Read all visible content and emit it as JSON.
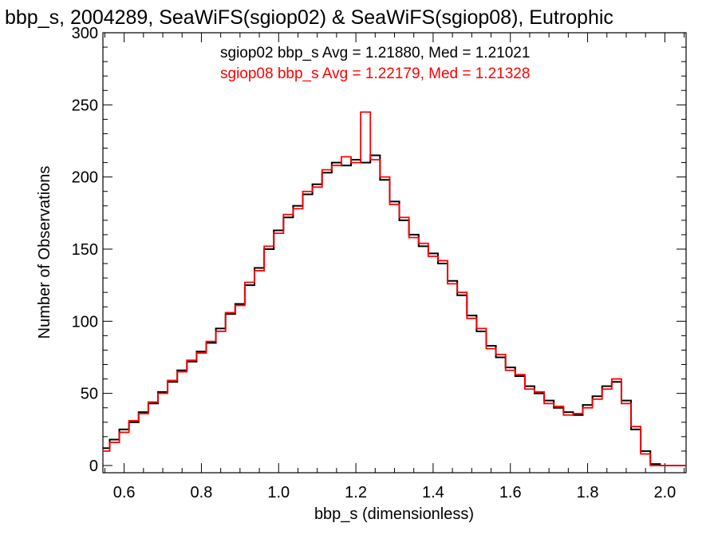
{
  "chart_data": {
    "type": "line",
    "title": "bbp_s, 2004289, SeaWiFS(sgiop02) & SeaWiFS(sgiop08), Eutrophic",
    "xlabel": "bbp_s (dimensionless)",
    "ylabel": "Number of Observations",
    "xlim": [
      0.545,
      2.055
    ],
    "ylim": [
      -5,
      300
    ],
    "xticks": [
      "0.6",
      "0.8",
      "1.0",
      "1.2",
      "1.4",
      "1.6",
      "1.8",
      "2.0"
    ],
    "yticks": [
      "0",
      "50",
      "100",
      "150",
      "200",
      "250",
      "300"
    ],
    "style": "step",
    "grid": false,
    "annotations": [
      {
        "text": "sgiop02 bbp_s Avg = 1.21880, Med = 1.21021",
        "color": "#000000"
      },
      {
        "text": "sgiop08 bbp_s Avg = 1.22179, Med = 1.21328",
        "color": "#ff0000"
      }
    ],
    "series": [
      {
        "name": "sgiop02",
        "color": "#000000",
        "x": [
          0.55,
          0.575,
          0.6,
          0.625,
          0.65,
          0.675,
          0.7,
          0.725,
          0.75,
          0.775,
          0.8,
          0.825,
          0.85,
          0.875,
          0.9,
          0.925,
          0.95,
          0.975,
          1.0,
          1.025,
          1.05,
          1.075,
          1.1,
          1.125,
          1.15,
          1.175,
          1.2,
          1.225,
          1.25,
          1.275,
          1.3,
          1.325,
          1.35,
          1.375,
          1.4,
          1.425,
          1.45,
          1.475,
          1.5,
          1.525,
          1.55,
          1.575,
          1.6,
          1.625,
          1.65,
          1.675,
          1.7,
          1.725,
          1.75,
          1.775,
          1.8,
          1.825,
          1.85,
          1.875,
          1.9,
          1.925,
          1.95,
          1.975,
          2.0
        ],
        "values": [
          12,
          18,
          25,
          30,
          37,
          43,
          51,
          58,
          66,
          72,
          79,
          85,
          95,
          105,
          112,
          125,
          137,
          150,
          163,
          172,
          180,
          188,
          195,
          203,
          210,
          208,
          212,
          210,
          215,
          198,
          183,
          170,
          160,
          152,
          147,
          140,
          128,
          118,
          104,
          93,
          83,
          75,
          68,
          62,
          55,
          50,
          45,
          40,
          37,
          35,
          42,
          48,
          55,
          58,
          45,
          25,
          10,
          1,
          0
        ]
      },
      {
        "name": "sgiop08",
        "color": "#ff0000",
        "x": [
          0.55,
          0.575,
          0.6,
          0.625,
          0.65,
          0.675,
          0.7,
          0.725,
          0.75,
          0.775,
          0.8,
          0.825,
          0.85,
          0.875,
          0.9,
          0.925,
          0.95,
          0.975,
          1.0,
          1.025,
          1.05,
          1.075,
          1.1,
          1.125,
          1.15,
          1.175,
          1.2,
          1.225,
          1.25,
          1.275,
          1.3,
          1.325,
          1.35,
          1.375,
          1.4,
          1.425,
          1.45,
          1.475,
          1.5,
          1.525,
          1.55,
          1.575,
          1.6,
          1.625,
          1.65,
          1.675,
          1.7,
          1.725,
          1.75,
          1.775,
          1.8,
          1.825,
          1.85,
          1.875,
          1.9,
          1.925,
          1.95,
          1.975,
          2.0
        ],
        "values": [
          10,
          16,
          23,
          31,
          36,
          44,
          50,
          59,
          65,
          73,
          78,
          86,
          93,
          106,
          111,
          127,
          135,
          152,
          161,
          174,
          178,
          190,
          193,
          205,
          208,
          214,
          210,
          245,
          212,
          200,
          181,
          172,
          158,
          154,
          145,
          142,
          126,
          120,
          102,
          95,
          81,
          77,
          66,
          63,
          53,
          51,
          43,
          41,
          35,
          36,
          40,
          46,
          53,
          60,
          43,
          27,
          8,
          0,
          0
        ]
      }
    ]
  }
}
